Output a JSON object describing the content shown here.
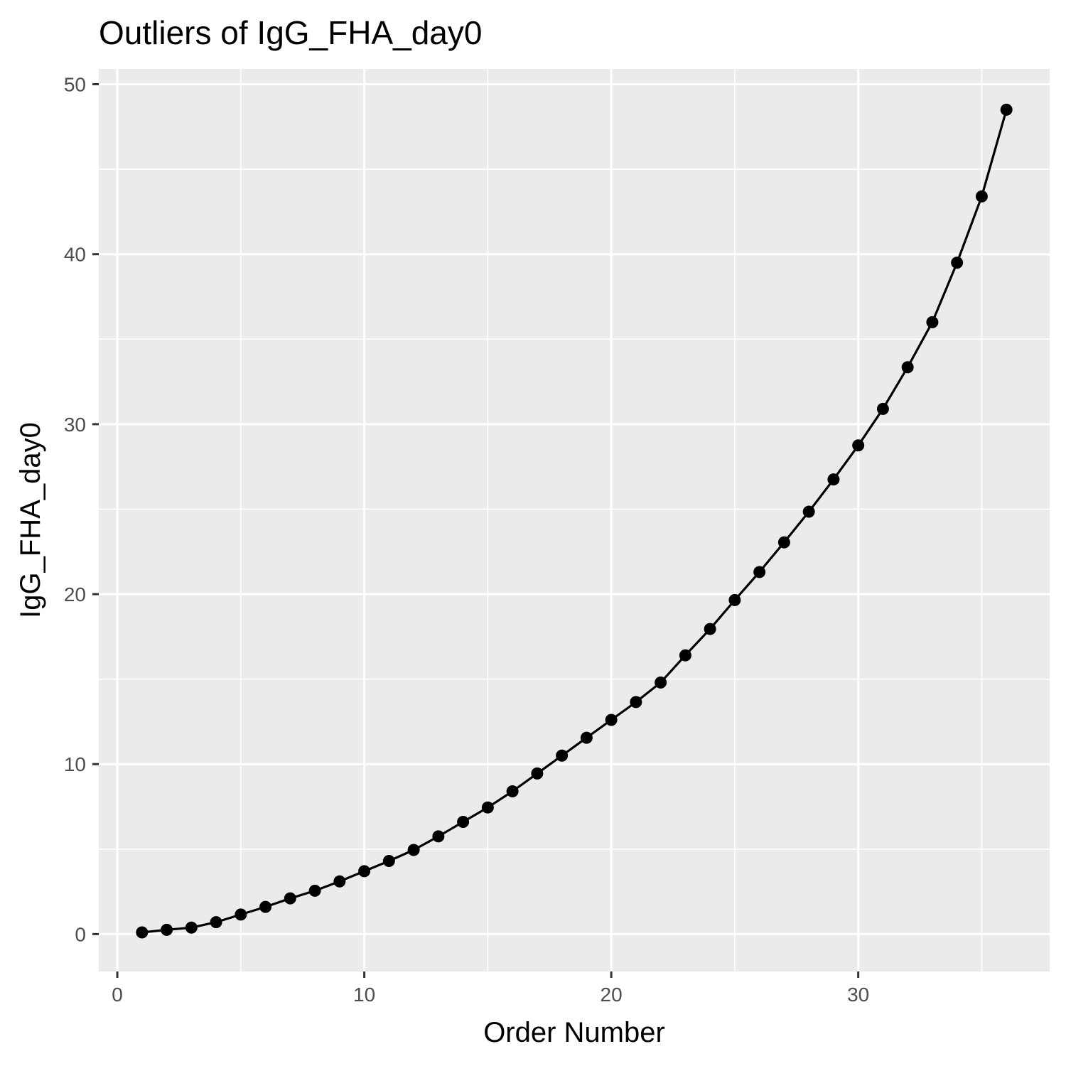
{
  "chart_data": {
    "type": "line",
    "title": "Outliers of IgG_FHA_day0",
    "xlabel": "Order Number",
    "ylabel": "IgG_FHA_day0",
    "xlim": [
      -0.75,
      37.75
    ],
    "ylim": [
      -2.2,
      50.9
    ],
    "xticks": [
      0,
      10,
      20,
      30
    ],
    "yticks": [
      0,
      10,
      20,
      30,
      40,
      50
    ],
    "grid": true,
    "legend": "none",
    "series": [
      {
        "color": "#000000",
        "x": [
          1,
          2,
          3,
          4,
          5,
          6,
          7,
          8,
          9,
          10,
          11,
          12,
          13,
          14,
          15,
          16,
          17,
          18,
          19,
          20,
          21,
          22,
          23,
          24,
          25,
          26,
          27,
          28,
          29,
          30,
          31,
          32,
          33,
          34,
          35,
          36
        ],
        "y": [
          0.1,
          0.25,
          0.38,
          0.7,
          1.15,
          1.6,
          2.1,
          2.55,
          3.1,
          3.7,
          4.3,
          4.95,
          5.75,
          6.6,
          7.45,
          8.4,
          9.45,
          10.5,
          11.55,
          12.6,
          13.65,
          14.8,
          16.4,
          17.95,
          19.65,
          21.3,
          23.05,
          24.85,
          26.75,
          28.75,
          30.9,
          33.35,
          36.0,
          39.5,
          43.4,
          48.5
        ]
      }
    ],
    "colors": {
      "panel": "#ebebeb",
      "grid": "#ffffff",
      "tick_text": "#4d4d4d",
      "tick_mark": "#333333"
    }
  }
}
